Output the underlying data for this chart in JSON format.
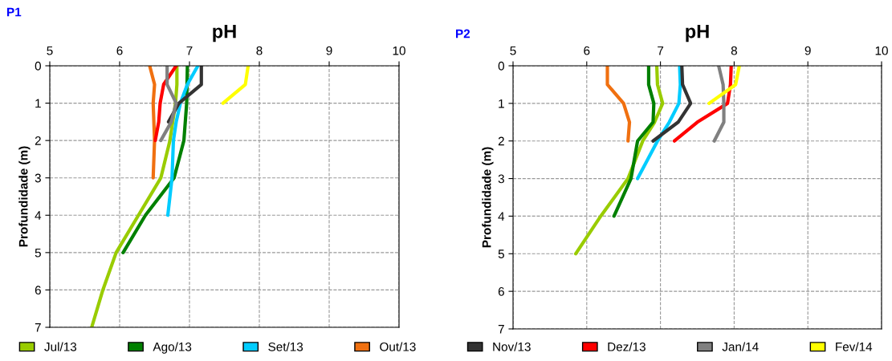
{
  "chart_data": [
    {
      "type": "line",
      "title": "pH",
      "ylabel": "Profundidade (m)",
      "annotations": [
        "P1"
      ],
      "xlim": [
        5,
        10
      ],
      "xticks": [
        5,
        6,
        7,
        8,
        9,
        10
      ],
      "ylim": [
        7,
        0
      ],
      "yticks": [
        0,
        1,
        2,
        3,
        4,
        5,
        6,
        7
      ],
      "grid": true,
      "legend": "bottom",
      "marker": "none",
      "line_style": "solid",
      "series": [
        {
          "name": "Jul/13",
          "color": "#99cc00",
          "x": [
            6.82,
            6.82,
            6.8,
            6.72,
            6.59,
            6.27,
            5.95,
            5.76,
            5.6
          ],
          "values": [
            0,
            0.5,
            1,
            2,
            3,
            4,
            5,
            6,
            7
          ]
        },
        {
          "name": "Ago/13",
          "color": "#008000",
          "x": [
            6.97,
            6.96,
            6.92,
            6.78,
            6.37,
            6.05
          ],
          "values": [
            0,
            1,
            2,
            3,
            4,
            5
          ]
        },
        {
          "name": "Set/13",
          "color": "#00ccff",
          "x": [
            7.12,
            6.97,
            6.87,
            6.81,
            6.77,
            6.75,
            6.69
          ],
          "values": [
            0,
            0.5,
            1,
            1.5,
            2,
            3,
            4
          ]
        },
        {
          "name": "Out/13",
          "color": "#f07010",
          "x": [
            6.43,
            6.5,
            6.48,
            6.5,
            6.48
          ],
          "values": [
            0,
            0.5,
            1,
            2,
            3
          ]
        },
        {
          "name": "Nov/13",
          "color": "#333333",
          "x": [
            7.17,
            7.17,
            6.85,
            6.7
          ],
          "values": [
            0,
            0.5,
            1,
            1.5
          ]
        },
        {
          "name": "Dez/13",
          "color": "#ff0000",
          "x": [
            6.81,
            6.63,
            6.58,
            6.56,
            6.51
          ],
          "values": [
            0,
            0.5,
            1,
            1.5,
            2
          ]
        },
        {
          "name": "Jan/14",
          "color": "#808080",
          "x": [
            6.68,
            6.68,
            6.81,
            6.74,
            6.59
          ],
          "values": [
            0,
            0.5,
            1,
            1.5,
            2
          ]
        },
        {
          "name": "Fev/14",
          "color": "#ffff00",
          "x": [
            7.84,
            7.8,
            7.48
          ],
          "values": [
            0,
            0.5,
            1
          ]
        }
      ]
    },
    {
      "type": "line",
      "title": "pH",
      "ylabel": "Profundidade (m)",
      "annotations": [
        "P2"
      ],
      "xlim": [
        5,
        10
      ],
      "xticks": [
        5,
        6,
        7,
        8,
        9,
        10
      ],
      "ylim": [
        7,
        0
      ],
      "yticks": [
        0,
        1,
        2,
        3,
        4,
        5,
        6,
        7
      ],
      "grid": true,
      "marker": "none",
      "line_style": "solid",
      "series": [
        {
          "color": "#99cc00",
          "x": [
            6.95,
            6.96,
            7.03,
            6.92,
            6.76,
            6.56,
            6.19,
            5.85
          ],
          "values": [
            0,
            0.5,
            1,
            1.5,
            2,
            3,
            4,
            5
          ]
        },
        {
          "color": "#008000",
          "x": [
            6.84,
            6.84,
            6.91,
            6.9,
            6.69,
            6.6,
            6.37
          ],
          "values": [
            0,
            0.5,
            1,
            1.5,
            2,
            3,
            4
          ]
        },
        {
          "color": "#00ccff",
          "x": [
            7.26,
            7.27,
            7.25,
            7.12,
            6.96,
            6.69
          ],
          "values": [
            0,
            0.5,
            1,
            1.5,
            2,
            3
          ]
        },
        {
          "color": "#f07010",
          "x": [
            6.28,
            6.28,
            6.5,
            6.58,
            6.56
          ],
          "values": [
            0,
            0.5,
            1,
            1.5,
            2
          ]
        },
        {
          "color": "#333333",
          "x": [
            7.29,
            7.3,
            7.41,
            7.24,
            6.9
          ],
          "values": [
            0,
            0.5,
            1,
            1.5,
            2
          ]
        },
        {
          "color": "#ff0000",
          "x": [
            7.96,
            7.95,
            7.91,
            7.5,
            7.19
          ],
          "values": [
            0,
            0.5,
            1,
            1.5,
            2
          ]
        },
        {
          "color": "#808080",
          "x": [
            7.79,
            7.85,
            7.86,
            7.86,
            7.73
          ],
          "values": [
            0,
            0.5,
            1,
            1.5,
            2
          ]
        },
        {
          "color": "#ffff00",
          "x": [
            8.07,
            8.02,
            7.66
          ],
          "values": [
            0,
            0.5,
            1
          ]
        }
      ]
    }
  ]
}
